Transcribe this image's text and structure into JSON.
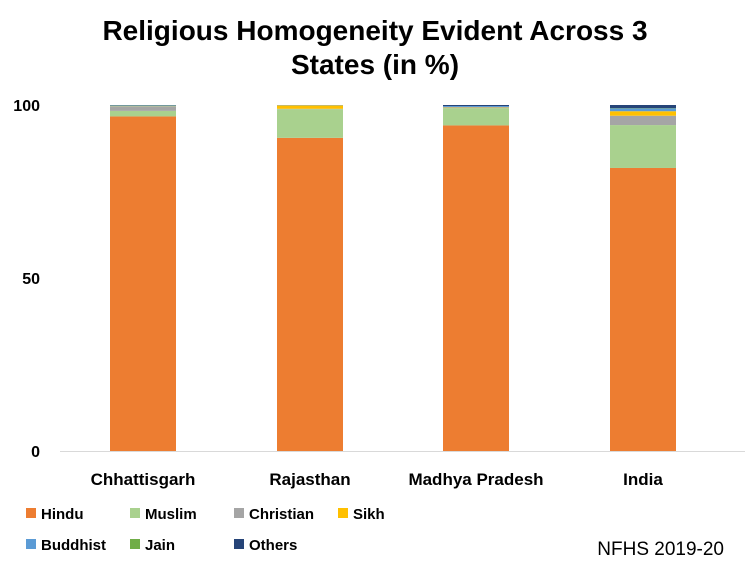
{
  "chart_data": {
    "type": "bar",
    "stacked": true,
    "title_lines": [
      "Religious Homogeneity Evident Across 3",
      "States (in %)"
    ],
    "categories": [
      "Chhattisgarh",
      "Rajasthan",
      "Madhya Pradesh",
      "India"
    ],
    "series": [
      {
        "name": "Hindu",
        "color": "#ED7D31",
        "values": [
          96.7,
          90.5,
          94.1,
          81.8
        ]
      },
      {
        "name": "Muslim",
        "color": "#A9D18E",
        "values": [
          1.6,
          8.3,
          5.0,
          12.4
        ]
      },
      {
        "name": "Christian",
        "color": "#A5A5A5",
        "values": [
          1.2,
          0.1,
          0.2,
          2.7
        ]
      },
      {
        "name": "Sikh",
        "color": "#FFC000",
        "values": [
          0.1,
          1.0,
          0.1,
          1.3
        ]
      },
      {
        "name": "Buddhist",
        "color": "#5B9BD5",
        "values": [
          0.2,
          0.1,
          0.3,
          0.8
        ]
      },
      {
        "name": "Jain",
        "color": "#70AD47",
        "values": [
          0.1,
          0.0,
          0.0,
          0.1
        ]
      },
      {
        "name": "Others",
        "color": "#264478",
        "values": [
          0.1,
          0.0,
          0.3,
          0.9
        ]
      }
    ],
    "y_ticks": [
      0,
      50,
      100
    ],
    "ylim": [
      0,
      100
    ],
    "legend_position": "bottom-left",
    "xlabel": "",
    "ylabel": ""
  },
  "source": "NFHS 2019-20"
}
